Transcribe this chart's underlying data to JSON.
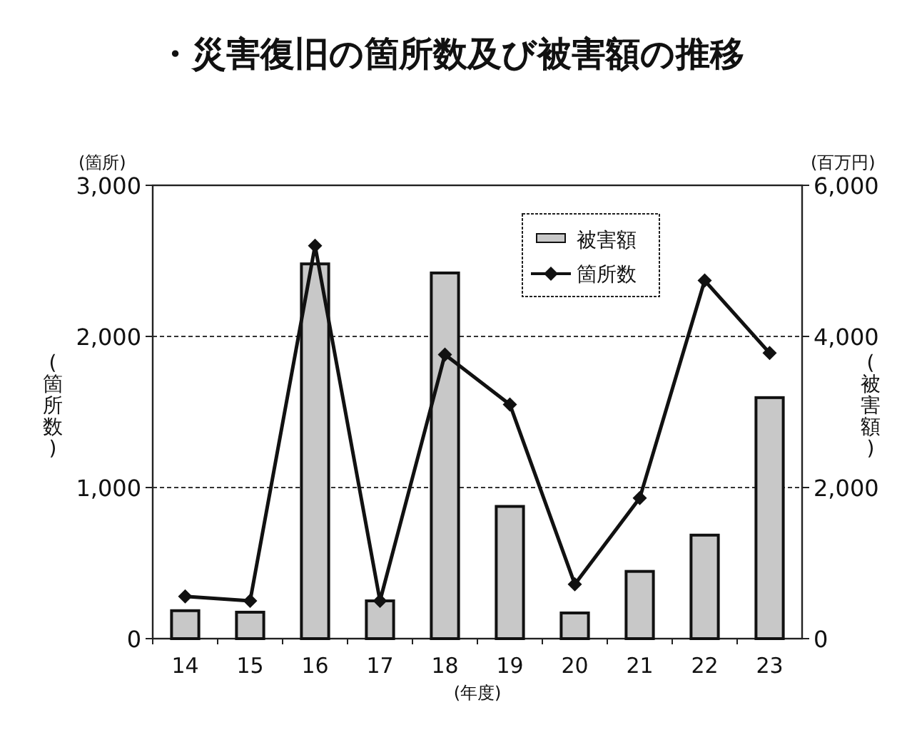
{
  "chart_data": {
    "type": "bar",
    "title": "・災害復旧の箇所数及び被害額の推移",
    "xlabel": "(年度)",
    "ylabel": "(箇所数)",
    "y2label": "(被害額)",
    "annotations": [
      "(箇所)",
      "(百万円)"
    ],
    "categories": [
      "14",
      "15",
      "16",
      "17",
      "18",
      "19",
      "20",
      "21",
      "22",
      "23"
    ],
    "series": [
      {
        "name": "被害額",
        "axis": "y2",
        "color": "#c8c8c8",
        "values": [
          370,
          350,
          4960,
          500,
          4840,
          1750,
          340,
          890,
          1370,
          3190
        ]
      },
      {
        "name": "箇所数",
        "type": "line",
        "axis": "y",
        "color": "#111111",
        "marker": "diamond",
        "values": [
          280,
          250,
          2600,
          250,
          1880,
          1550,
          360,
          930,
          2370,
          1890
        ]
      }
    ],
    "ylim": [
      0,
      3000
    ],
    "yticks": [
      0,
      {
        "value": 1000,
        "label": "1,000"
      },
      {
        "value": 2000,
        "label": "2,000"
      },
      {
        "value": 3000,
        "label": "3,000"
      }
    ],
    "y2lim": [
      0,
      6000
    ],
    "y2ticks": [
      0,
      {
        "value": 2000,
        "label": "2,000"
      },
      {
        "value": 4000,
        "label": "4,000"
      },
      {
        "value": 6000,
        "label": "6,000"
      }
    ],
    "grid": "y",
    "legend": "top right"
  }
}
